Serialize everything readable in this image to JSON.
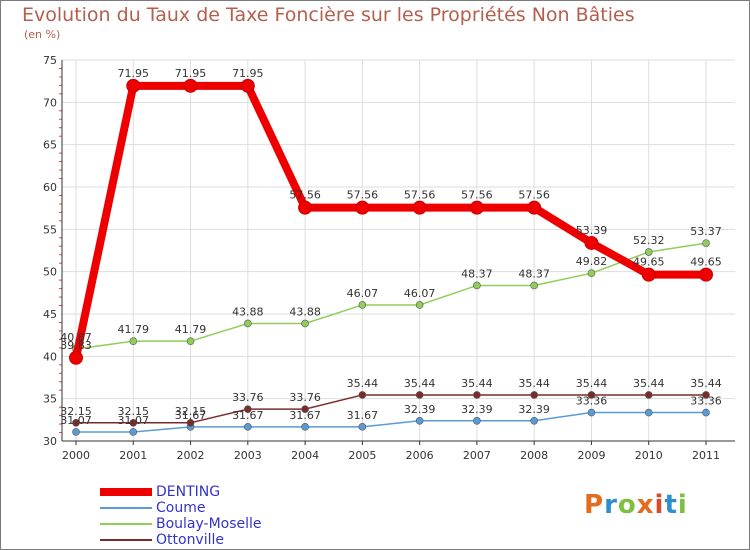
{
  "header": {
    "title": "Evolution du Taux de Taxe Foncière sur les Propriétés Non Bâties",
    "subtitle": "(en %)"
  },
  "logo": {
    "text": "Proxiti",
    "colors": [
      "#e36c1e",
      "#2f8fce",
      "#7fbf3f",
      "#e36c1e",
      "#d84a2a",
      "#2f8fce",
      "#7fbf3f"
    ]
  },
  "chart_data": {
    "type": "line",
    "title": "Evolution du Taux de Taxe Foncière sur les Propriétés Non Bâties",
    "subtitle": "(en %)",
    "xlabel": "",
    "ylabel": "",
    "categories": [
      "2000",
      "2001",
      "2002",
      "2003",
      "2004",
      "2005",
      "2006",
      "2007",
      "2008",
      "2009",
      "2010",
      "2011"
    ],
    "ylim": [
      30,
      75
    ],
    "yticks": [
      "30",
      "35",
      "40",
      "45",
      "50",
      "55",
      "60",
      "65",
      "70",
      "75"
    ],
    "grid": true,
    "legend_position": "bottom-left",
    "series": [
      {
        "name": "DENTING",
        "color": "#ee0000",
        "emphasis": true,
        "values": [
          39.83,
          71.95,
          71.95,
          71.95,
          57.56,
          57.56,
          57.56,
          57.56,
          57.56,
          53.39,
          49.65,
          49.65
        ],
        "labels": [
          "39.83",
          "71.95",
          "71.95",
          "71.95",
          "57.56",
          "57.56",
          "57.56",
          "57.56",
          "57.56",
          "53.39",
          "49.65",
          "49.65"
        ]
      },
      {
        "name": "Coume",
        "color": "#5b9bd5",
        "values": [
          31.07,
          31.07,
          31.67,
          31.67,
          31.67,
          31.67,
          32.39,
          32.39,
          32.39,
          33.36,
          33.36,
          33.36
        ],
        "labels": [
          "31.07",
          "31.07",
          "31.67",
          "31.67",
          "31.67",
          "31.67",
          "32.39",
          "32.39",
          "32.39",
          "33.36",
          "",
          "33.36"
        ]
      },
      {
        "name": "Boulay-Moselle",
        "color": "#8fce5a",
        "values": [
          40.87,
          41.79,
          41.79,
          43.88,
          43.88,
          46.07,
          46.07,
          48.37,
          48.37,
          49.82,
          52.32,
          53.37
        ],
        "labels": [
          "40.87",
          "41.79",
          "41.79",
          "43.88",
          "43.88",
          "46.07",
          "46.07",
          "48.37",
          "48.37",
          "49.82",
          "52.32",
          "53.37"
        ]
      },
      {
        "name": "Ottonville",
        "color": "#7a2c2c",
        "values": [
          32.15,
          32.15,
          32.15,
          33.76,
          33.76,
          35.44,
          35.44,
          35.44,
          35.44,
          35.44,
          35.44,
          35.44
        ],
        "labels": [
          "32.15",
          "32.15",
          "32.15",
          "33.76",
          "33.76",
          "35.44",
          "35.44",
          "35.44",
          "35.44",
          "35.44",
          "35.44",
          "35.44"
        ]
      }
    ]
  }
}
